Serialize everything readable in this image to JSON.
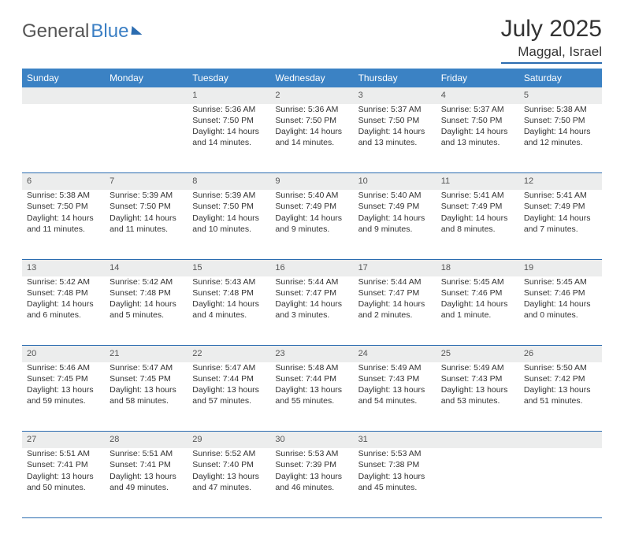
{
  "brand": {
    "part1": "General",
    "part2": "Blue"
  },
  "title": "July 2025",
  "location": "Maggal, Israel",
  "colors": {
    "header_bg": "#3b82c4",
    "header_text": "#ffffff",
    "rule": "#2b6cb0",
    "daynum_bg": "#eceded",
    "text": "#333333",
    "background": "#ffffff"
  },
  "weekdays": [
    "Sunday",
    "Monday",
    "Tuesday",
    "Wednesday",
    "Thursday",
    "Friday",
    "Saturday"
  ],
  "weeks": [
    {
      "days": [
        {
          "n": "",
          "sunrise": "",
          "sunset": "",
          "daylight": ""
        },
        {
          "n": "",
          "sunrise": "",
          "sunset": "",
          "daylight": ""
        },
        {
          "n": "1",
          "sunrise": "Sunrise: 5:36 AM",
          "sunset": "Sunset: 7:50 PM",
          "daylight": "Daylight: 14 hours and 14 minutes."
        },
        {
          "n": "2",
          "sunrise": "Sunrise: 5:36 AM",
          "sunset": "Sunset: 7:50 PM",
          "daylight": "Daylight: 14 hours and 14 minutes."
        },
        {
          "n": "3",
          "sunrise": "Sunrise: 5:37 AM",
          "sunset": "Sunset: 7:50 PM",
          "daylight": "Daylight: 14 hours and 13 minutes."
        },
        {
          "n": "4",
          "sunrise": "Sunrise: 5:37 AM",
          "sunset": "Sunset: 7:50 PM",
          "daylight": "Daylight: 14 hours and 13 minutes."
        },
        {
          "n": "5",
          "sunrise": "Sunrise: 5:38 AM",
          "sunset": "Sunset: 7:50 PM",
          "daylight": "Daylight: 14 hours and 12 minutes."
        }
      ]
    },
    {
      "days": [
        {
          "n": "6",
          "sunrise": "Sunrise: 5:38 AM",
          "sunset": "Sunset: 7:50 PM",
          "daylight": "Daylight: 14 hours and 11 minutes."
        },
        {
          "n": "7",
          "sunrise": "Sunrise: 5:39 AM",
          "sunset": "Sunset: 7:50 PM",
          "daylight": "Daylight: 14 hours and 11 minutes."
        },
        {
          "n": "8",
          "sunrise": "Sunrise: 5:39 AM",
          "sunset": "Sunset: 7:50 PM",
          "daylight": "Daylight: 14 hours and 10 minutes."
        },
        {
          "n": "9",
          "sunrise": "Sunrise: 5:40 AM",
          "sunset": "Sunset: 7:49 PM",
          "daylight": "Daylight: 14 hours and 9 minutes."
        },
        {
          "n": "10",
          "sunrise": "Sunrise: 5:40 AM",
          "sunset": "Sunset: 7:49 PM",
          "daylight": "Daylight: 14 hours and 9 minutes."
        },
        {
          "n": "11",
          "sunrise": "Sunrise: 5:41 AM",
          "sunset": "Sunset: 7:49 PM",
          "daylight": "Daylight: 14 hours and 8 minutes."
        },
        {
          "n": "12",
          "sunrise": "Sunrise: 5:41 AM",
          "sunset": "Sunset: 7:49 PM",
          "daylight": "Daylight: 14 hours and 7 minutes."
        }
      ]
    },
    {
      "days": [
        {
          "n": "13",
          "sunrise": "Sunrise: 5:42 AM",
          "sunset": "Sunset: 7:48 PM",
          "daylight": "Daylight: 14 hours and 6 minutes."
        },
        {
          "n": "14",
          "sunrise": "Sunrise: 5:42 AM",
          "sunset": "Sunset: 7:48 PM",
          "daylight": "Daylight: 14 hours and 5 minutes."
        },
        {
          "n": "15",
          "sunrise": "Sunrise: 5:43 AM",
          "sunset": "Sunset: 7:48 PM",
          "daylight": "Daylight: 14 hours and 4 minutes."
        },
        {
          "n": "16",
          "sunrise": "Sunrise: 5:44 AM",
          "sunset": "Sunset: 7:47 PM",
          "daylight": "Daylight: 14 hours and 3 minutes."
        },
        {
          "n": "17",
          "sunrise": "Sunrise: 5:44 AM",
          "sunset": "Sunset: 7:47 PM",
          "daylight": "Daylight: 14 hours and 2 minutes."
        },
        {
          "n": "18",
          "sunrise": "Sunrise: 5:45 AM",
          "sunset": "Sunset: 7:46 PM",
          "daylight": "Daylight: 14 hours and 1 minute."
        },
        {
          "n": "19",
          "sunrise": "Sunrise: 5:45 AM",
          "sunset": "Sunset: 7:46 PM",
          "daylight": "Daylight: 14 hours and 0 minutes."
        }
      ]
    },
    {
      "days": [
        {
          "n": "20",
          "sunrise": "Sunrise: 5:46 AM",
          "sunset": "Sunset: 7:45 PM",
          "daylight": "Daylight: 13 hours and 59 minutes."
        },
        {
          "n": "21",
          "sunrise": "Sunrise: 5:47 AM",
          "sunset": "Sunset: 7:45 PM",
          "daylight": "Daylight: 13 hours and 58 minutes."
        },
        {
          "n": "22",
          "sunrise": "Sunrise: 5:47 AM",
          "sunset": "Sunset: 7:44 PM",
          "daylight": "Daylight: 13 hours and 57 minutes."
        },
        {
          "n": "23",
          "sunrise": "Sunrise: 5:48 AM",
          "sunset": "Sunset: 7:44 PM",
          "daylight": "Daylight: 13 hours and 55 minutes."
        },
        {
          "n": "24",
          "sunrise": "Sunrise: 5:49 AM",
          "sunset": "Sunset: 7:43 PM",
          "daylight": "Daylight: 13 hours and 54 minutes."
        },
        {
          "n": "25",
          "sunrise": "Sunrise: 5:49 AM",
          "sunset": "Sunset: 7:43 PM",
          "daylight": "Daylight: 13 hours and 53 minutes."
        },
        {
          "n": "26",
          "sunrise": "Sunrise: 5:50 AM",
          "sunset": "Sunset: 7:42 PM",
          "daylight": "Daylight: 13 hours and 51 minutes."
        }
      ]
    },
    {
      "days": [
        {
          "n": "27",
          "sunrise": "Sunrise: 5:51 AM",
          "sunset": "Sunset: 7:41 PM",
          "daylight": "Daylight: 13 hours and 50 minutes."
        },
        {
          "n": "28",
          "sunrise": "Sunrise: 5:51 AM",
          "sunset": "Sunset: 7:41 PM",
          "daylight": "Daylight: 13 hours and 49 minutes."
        },
        {
          "n": "29",
          "sunrise": "Sunrise: 5:52 AM",
          "sunset": "Sunset: 7:40 PM",
          "daylight": "Daylight: 13 hours and 47 minutes."
        },
        {
          "n": "30",
          "sunrise": "Sunrise: 5:53 AM",
          "sunset": "Sunset: 7:39 PM",
          "daylight": "Daylight: 13 hours and 46 minutes."
        },
        {
          "n": "31",
          "sunrise": "Sunrise: 5:53 AM",
          "sunset": "Sunset: 7:38 PM",
          "daylight": "Daylight: 13 hours and 45 minutes."
        },
        {
          "n": "",
          "sunrise": "",
          "sunset": "",
          "daylight": ""
        },
        {
          "n": "",
          "sunrise": "",
          "sunset": "",
          "daylight": ""
        }
      ]
    }
  ]
}
